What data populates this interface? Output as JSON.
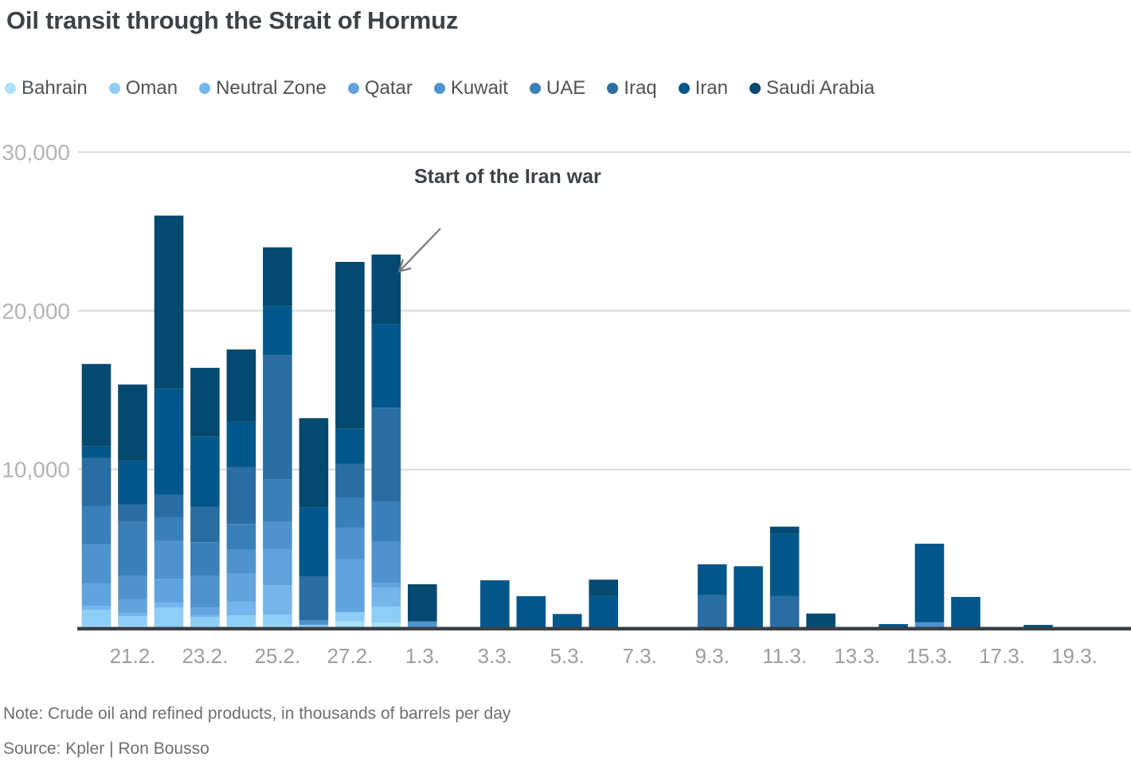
{
  "title": "Oil transit through the Strait of Hormuz",
  "annotation": {
    "text": "Start of the Iran war"
  },
  "note": "Note: Crude oil and refined products, in thousands of barrels per day",
  "source": "Source: Kpler | Ron Bousso",
  "colors": {
    "axis_baseline": "#3a3f45",
    "gridline": "#d8d8d8",
    "y_tick_label": "#b1b3b5",
    "x_tick_label": "#9b9ea1",
    "annotation_arrow": "#71767b",
    "text_dark": "#3d4247"
  },
  "chart_data": {
    "type": "bar",
    "stacked": true,
    "title": "Oil transit through the Strait of Hormuz",
    "unit": "thousands of barrels per day",
    "legend_position": "top",
    "grid": true,
    "ylim": [
      0,
      30000
    ],
    "y_ticks": [
      {
        "label": "10,000",
        "value": 10000
      },
      {
        "label": "20,000",
        "value": 20000
      },
      {
        "label": "30,000",
        "value": 30000
      }
    ],
    "categories": [
      "20.2.",
      "21.2.",
      "22.2.",
      "23.2.",
      "24.2.",
      "25.2.",
      "26.2.",
      "27.2.",
      "28.2.",
      "1.3.",
      "2.3.",
      "3.3.",
      "4.3.",
      "5.3.",
      "6.3.",
      "7.3.",
      "8.3.",
      "9.3.",
      "10.3.",
      "11.3.",
      "12.3.",
      "13.3.",
      "14.3.",
      "15.3.",
      "16.3.",
      "17.3.",
      "18.3.",
      "19.3."
    ],
    "x_tick_labels_shown": [
      "21.2.",
      "23.2.",
      "25.2.",
      "27.2.",
      "1.3.",
      "3.3.",
      "5.3.",
      "7.3.",
      "9.3.",
      "11.3.",
      "13.3.",
      "15.3.",
      "17.3.",
      "19.3."
    ],
    "series": [
      {
        "name": "Bahrain",
        "color": "#abe2fa",
        "values": [
          150,
          150,
          100,
          120,
          150,
          160,
          60,
          420,
          340,
          0,
          0,
          0,
          0,
          0,
          0,
          0,
          0,
          0,
          0,
          0,
          0,
          0,
          0,
          0,
          0,
          0,
          0,
          0
        ]
      },
      {
        "name": "Oman",
        "color": "#8dcdf6",
        "values": [
          1000,
          600,
          1200,
          580,
          640,
          680,
          140,
          580,
          1000,
          0,
          0,
          0,
          0,
          0,
          0,
          0,
          0,
          0,
          0,
          0,
          0,
          0,
          0,
          0,
          0,
          0,
          0,
          0
        ]
      },
      {
        "name": "Neutral Zone",
        "color": "#74b5ec",
        "values": [
          250,
          200,
          300,
          120,
          870,
          1850,
          0,
          0,
          1210,
          0,
          0,
          0,
          0,
          0,
          0,
          0,
          0,
          0,
          0,
          0,
          0,
          0,
          0,
          0,
          0,
          0,
          0,
          0
        ]
      },
      {
        "name": "Qatar",
        "color": "#61a3dd",
        "values": [
          1400,
          850,
          1500,
          480,
          1800,
          2300,
          0,
          3320,
          300,
          0,
          0,
          0,
          0,
          0,
          0,
          0,
          0,
          0,
          0,
          0,
          0,
          0,
          0,
          0,
          0,
          0,
          0,
          0
        ]
      },
      {
        "name": "Kuwait",
        "color": "#4f93cd",
        "values": [
          2450,
          1500,
          2400,
          2000,
          1510,
          1700,
          300,
          2010,
          2590,
          420,
          0,
          0,
          0,
          0,
          0,
          0,
          0,
          0,
          0,
          0,
          0,
          0,
          0,
          370,
          0,
          0,
          0,
          0
        ]
      },
      {
        "name": "UAE",
        "color": "#3a80b8",
        "values": [
          2450,
          3400,
          1500,
          2100,
          1590,
          2680,
          0,
          1900,
          2510,
          0,
          0,
          0,
          0,
          0,
          0,
          0,
          0,
          0,
          0,
          0,
          0,
          0,
          0,
          0,
          0,
          0,
          0,
          0
        ]
      },
      {
        "name": "Iraq",
        "color": "#2a6da3",
        "values": [
          3000,
          1100,
          1400,
          2250,
          3600,
          7830,
          2760,
          2110,
          5940,
          0,
          0,
          0,
          0,
          0,
          0,
          0,
          0,
          2090,
          0,
          2010,
          0,
          0,
          0,
          0,
          0,
          0,
          0,
          0
        ]
      },
      {
        "name": "Iran",
        "color": "#02578a",
        "values": [
          750,
          2750,
          6700,
          4430,
          2840,
          3100,
          4350,
          2240,
          5270,
          0,
          0,
          3010,
          2010,
          890,
          2010,
          0,
          0,
          1930,
          3900,
          3930,
          0,
          0,
          250,
          4950,
          1960,
          0,
          200,
          0
        ]
      },
      {
        "name": "Saudi Arabia",
        "color": "#04496f",
        "values": [
          5200,
          4800,
          10900,
          4320,
          4560,
          3700,
          5620,
          10500,
          4385,
          2340,
          0,
          0,
          0,
          0,
          1040,
          0,
          0,
          0,
          0,
          450,
          920,
          0,
          0,
          0,
          0,
          0,
          0,
          0
        ]
      }
    ]
  }
}
